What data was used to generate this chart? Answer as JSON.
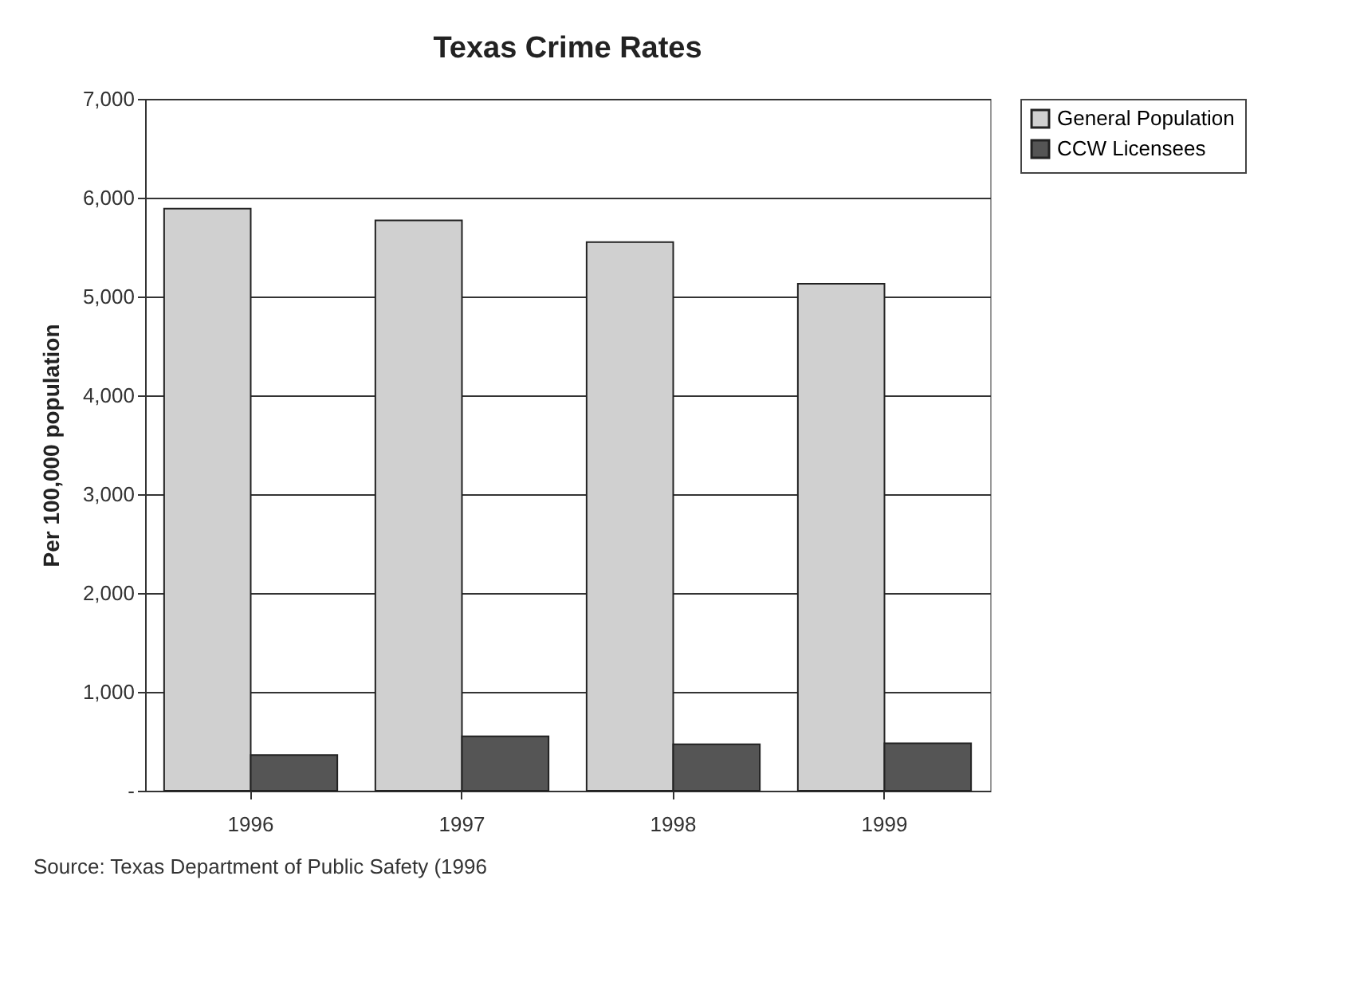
{
  "chart_data": {
    "type": "bar",
    "title": "Texas Crime Rates",
    "ylabel": "Per 100,000 population",
    "categories": [
      "1996",
      "1997",
      "1998",
      "1999"
    ],
    "series": [
      {
        "name": "General Population",
        "color": "#d0d0d0",
        "values": [
          5890,
          5770,
          5550,
          5130
        ]
      },
      {
        "name": "CCW Licensees",
        "color": "#555555",
        "values": [
          360,
          550,
          470,
          480
        ]
      }
    ],
    "ylim": [
      0,
      7000
    ],
    "yticks": [
      {
        "value": 0,
        "label": "-"
      },
      {
        "value": 1000,
        "label": "1,000"
      },
      {
        "value": 2000,
        "label": "2,000"
      },
      {
        "value": 3000,
        "label": "3,000"
      },
      {
        "value": 4000,
        "label": "4,000"
      },
      {
        "value": 5000,
        "label": "5,000"
      },
      {
        "value": 6000,
        "label": "6,000"
      },
      {
        "value": 7000,
        "label": "7,000"
      }
    ],
    "grid": "y",
    "legend": "right",
    "annotations": [
      "Source:  Texas Department of Public Safety (1996"
    ]
  }
}
